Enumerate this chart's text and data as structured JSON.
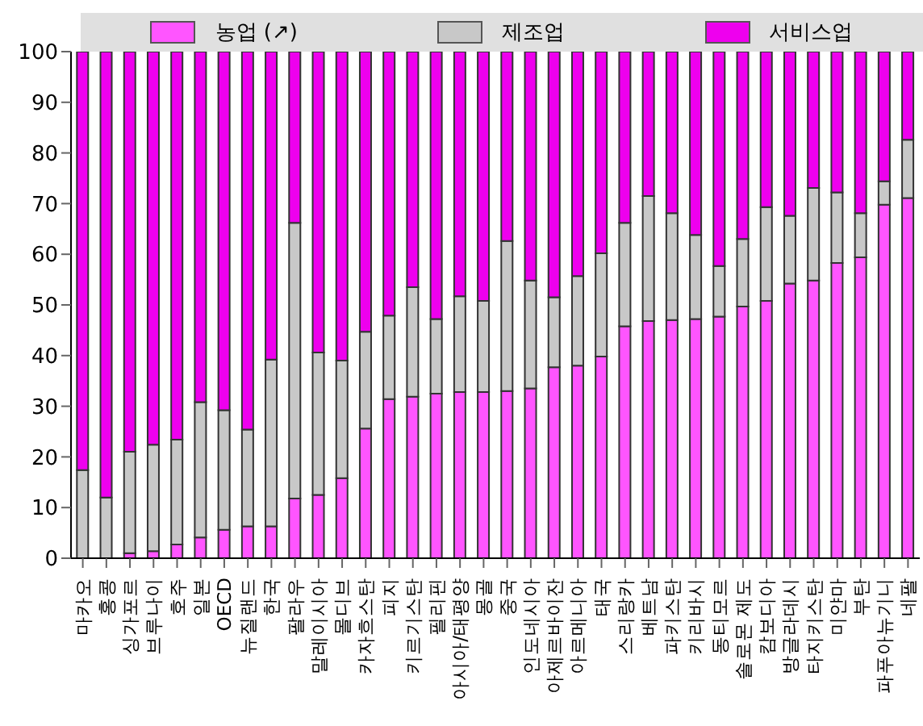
{
  "chart_data": {
    "type": "bar",
    "stacked": true,
    "legend": "top",
    "categories": [
      "마카오",
      "홍콩",
      "싱가포르",
      "브루나이",
      "호주",
      "일본",
      "OECD",
      "뉴질랜드",
      "한국",
      "팔라우",
      "말레이시아",
      "몰디브",
      "카자흐스탄",
      "피지",
      "키르기스탄",
      "필리핀",
      "아시아/태평양",
      "몽골",
      "중국",
      "인도네시아",
      "아제르바이잔",
      "아르메니아",
      "태국",
      "스리랑카",
      "베트남",
      "파키스탄",
      "키리바시",
      "동티모르",
      "솔로몬 제도",
      "캄보디아",
      "방글라데시",
      "타지키스탄",
      "미얀마",
      "부탄",
      "파푸아뉴기니",
      "네팔"
    ],
    "series": [
      {
        "name": "농업 (↗)",
        "color": "#ff55ff",
        "values": [
          null,
          null,
          1,
          1.4,
          2.7,
          4.1,
          5.6,
          6.3,
          6.3,
          11.8,
          12.5,
          15.8,
          25.6,
          31.4,
          31.9,
          32.5,
          32.8,
          32.8,
          33,
          33.5,
          37.7,
          38,
          39.8,
          45.8,
          46.8,
          47,
          47.2,
          47.7,
          49.7,
          50.8,
          54.2,
          54.8,
          58.3,
          59.4,
          69.8,
          71.1
        ]
      },
      {
        "name": "제조업",
        "color": "#c8c8c8",
        "values": [
          17.4,
          12,
          20,
          21,
          20.7,
          26.7,
          23.6,
          19.1,
          32.9,
          54.4,
          28.1,
          23.2,
          19.1,
          16.5,
          21.6,
          14.7,
          18.9,
          18,
          29.6,
          21.3,
          13.8,
          17.7,
          20.4,
          20.4,
          24.7,
          21.1,
          16.6,
          10,
          13.3,
          18.5,
          13.4,
          18.3,
          13.9,
          8.7,
          4.6,
          11.5
        ]
      },
      {
        "name": "서비스업",
        "color": "#ee00ee",
        "values": [
          82.6,
          88,
          79,
          77.6,
          76.6,
          69.2,
          70.8,
          74.6,
          60.8,
          33.8,
          59.4,
          61,
          55.3,
          52.1,
          46.5,
          52.8,
          48.3,
          49.2,
          37.4,
          45.2,
          48.5,
          44.3,
          39.8,
          33.8,
          28.5,
          31.9,
          36.2,
          42.3,
          37,
          30.7,
          32.4,
          26.9,
          27.8,
          31.9,
          25.6,
          17.4
        ]
      }
    ],
    "ylim": [
      0,
      100
    ],
    "yticks": [
      0,
      10,
      20,
      30,
      40,
      50,
      60,
      70,
      80,
      90,
      100
    ],
    "grid": false
  }
}
